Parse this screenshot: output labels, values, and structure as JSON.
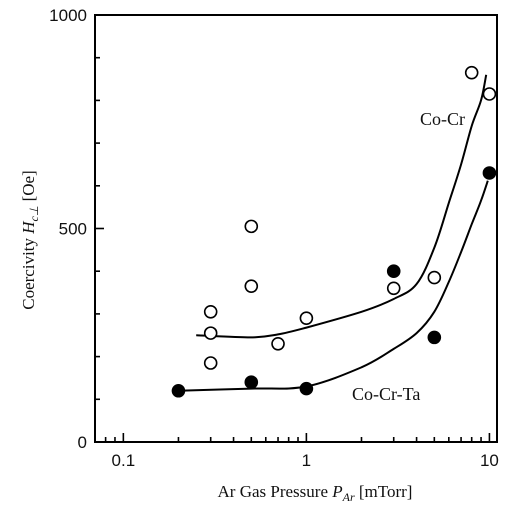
{
  "chart_data": {
    "type": "scatter",
    "x_scale": "log",
    "xlim": [
      0.07,
      11
    ],
    "ylim": [
      0,
      1000
    ],
    "xlabel": "Ar Gas Pressure P_Ar [mTorr]",
    "xlabel_parts": {
      "main": "Ar Gas Pressure ",
      "var": "P",
      "sub": "Ar",
      "unit": " [mTorr]"
    },
    "ylabel": "Coercivity Hc⊥ [Oe]",
    "ylabel_parts": {
      "main": "Coercivity ",
      "var": "H",
      "sub": "c⊥",
      "unit": " [Oe]"
    },
    "x_ticks": [
      0.1,
      1,
      10
    ],
    "x_tick_labels": [
      "0.1",
      "1",
      "10"
    ],
    "y_ticks": [
      0,
      500,
      1000
    ],
    "y_tick_labels": [
      "0",
      "500",
      "1000"
    ],
    "grid": false,
    "series": [
      {
        "name": "Co-Cr",
        "marker": "open-circle",
        "points": [
          [
            0.3,
            305
          ],
          [
            0.3,
            255
          ],
          [
            0.3,
            185
          ],
          [
            0.5,
            505
          ],
          [
            0.5,
            365
          ],
          [
            0.7,
            230
          ],
          [
            1.0,
            290
          ],
          [
            3.0,
            360
          ],
          [
            5.0,
            385
          ],
          [
            8.0,
            865
          ],
          [
            10.0,
            815
          ]
        ],
        "trend": [
          [
            0.25,
            250
          ],
          [
            0.5,
            245
          ],
          [
            0.7,
            252
          ],
          [
            1.0,
            268
          ],
          [
            2.0,
            305
          ],
          [
            3.0,
            335
          ],
          [
            4.0,
            370
          ],
          [
            5.0,
            455
          ],
          [
            6.0,
            560
          ],
          [
            7.0,
            650
          ],
          [
            8.0,
            740
          ],
          [
            9.0,
            800
          ],
          [
            9.6,
            860
          ]
        ]
      },
      {
        "name": "Co-Cr-Ta",
        "marker": "filled-circle",
        "points": [
          [
            0.2,
            120
          ],
          [
            0.5,
            140
          ],
          [
            1.0,
            125
          ],
          [
            3.0,
            400
          ],
          [
            5.0,
            245
          ],
          [
            10.0,
            630
          ]
        ],
        "trend": [
          [
            0.2,
            120
          ],
          [
            0.5,
            125
          ],
          [
            1.0,
            130
          ],
          [
            2.0,
            175
          ],
          [
            3.0,
            218
          ],
          [
            4.0,
            255
          ],
          [
            5.0,
            305
          ],
          [
            6.0,
            375
          ],
          [
            7.0,
            445
          ],
          [
            8.0,
            510
          ],
          [
            9.0,
            565
          ],
          [
            9.8,
            612
          ]
        ]
      }
    ]
  }
}
